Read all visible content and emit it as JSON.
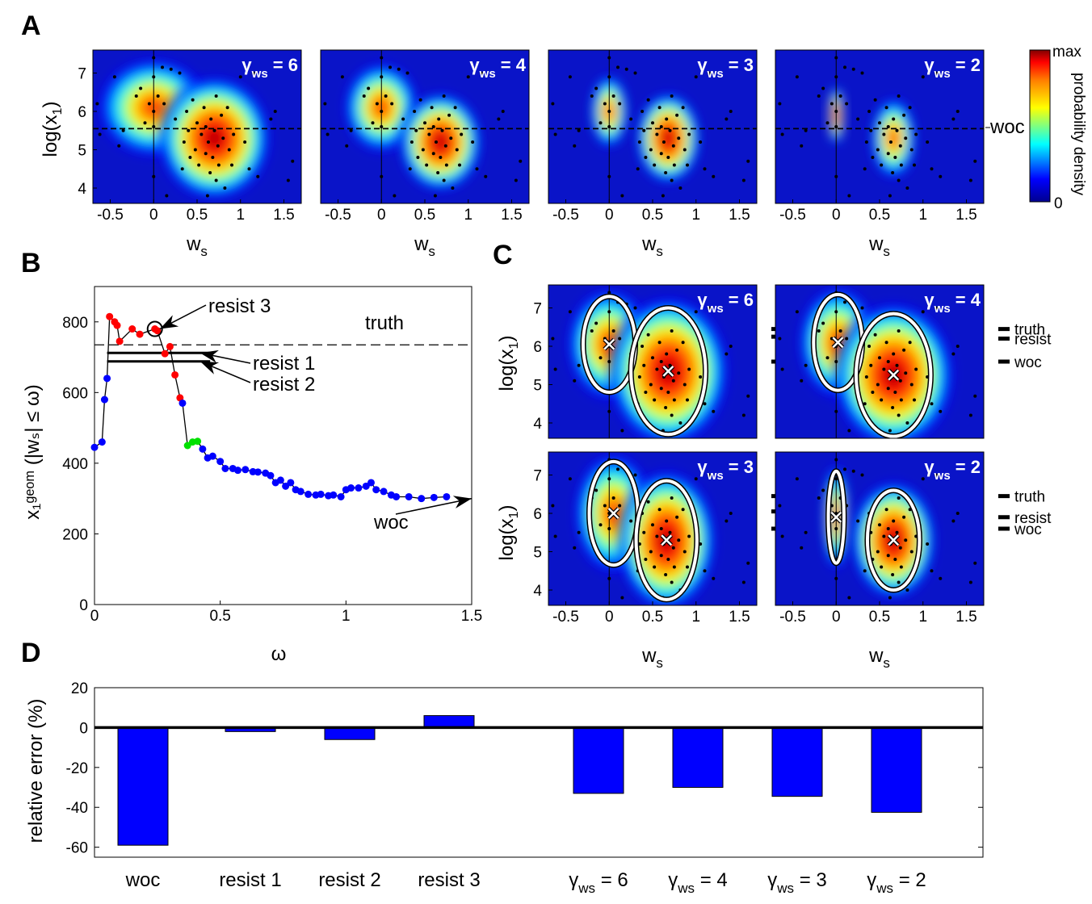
{
  "panel_labels": {
    "A": "A",
    "B": "B",
    "C": "C",
    "D": "D"
  },
  "colorbar": {
    "max_label": "max",
    "min_label": "0",
    "title": "probability density",
    "colors": [
      "#00008f",
      "#0000ff",
      "#00ffff",
      "#ffff00",
      "#ff7f00",
      "#ff0000",
      "#800000"
    ]
  },
  "woc_line_label": "woc",
  "gamma": {
    "symbol": "γ",
    "sub": "ws",
    "values": [
      "6",
      "4",
      "3",
      "2"
    ]
  },
  "axes_A": {
    "xlabel_main": "w",
    "xlabel_sub": "s",
    "ylabel_main": "log(x",
    "ylabel_sub": "1",
    "ylabel_end": ")",
    "xticks": [
      "-0.5",
      "0",
      "0.5",
      "1",
      "1.5"
    ],
    "yticks": [
      "4",
      "5",
      "6",
      "7"
    ]
  },
  "axes_B": {
    "xlabel": "ω",
    "ylabel": "x₁ᵍᵉᵒᵐ (|wₛ| ≤ ω)",
    "xticks": [
      "0",
      "0.5",
      "1",
      "1.5"
    ],
    "yticks": [
      "0",
      "200",
      "400",
      "600",
      "800"
    ]
  },
  "annot_B": {
    "resist3": "resist 3",
    "resist1": "resist 1",
    "resist2": "resist 2",
    "truth": "truth",
    "woc": "woc"
  },
  "markers_C": {
    "truth": "truth",
    "resist": "resist",
    "woc": "woc"
  },
  "axes_D": {
    "ylabel": "relative error (%)",
    "yticks": [
      "20",
      "0",
      "-20",
      "-40",
      "-60"
    ]
  },
  "chart_data": [
    {
      "type": "heatmap",
      "panel": "A",
      "x_range": [
        -0.7,
        1.7
      ],
      "y_range": [
        3.6,
        7.6
      ],
      "woc_y": 5.55,
      "colorbar_range": [
        "0",
        "max"
      ],
      "panels": [
        {
          "gamma": "6",
          "peaks": [
            [
              0.0,
              6.1,
              0.3,
              0.6,
              0.75
            ],
            [
              0.7,
              5.3,
              0.3,
              0.75,
              1.0
            ]
          ]
        },
        {
          "gamma": "4",
          "peaks": [
            [
              0.0,
              6.1,
              0.2,
              0.55,
              0.75
            ],
            [
              0.68,
              5.2,
              0.22,
              0.6,
              1.0
            ]
          ]
        },
        {
          "gamma": "3",
          "peaks": [
            [
              0.0,
              6.0,
              0.1,
              0.45,
              0.6
            ],
            [
              0.68,
              5.3,
              0.17,
              0.55,
              0.9
            ]
          ]
        },
        {
          "gamma": "2",
          "peaks": [
            [
              0.0,
              5.9,
              0.04,
              0.35,
              0.95
            ],
            [
              0.66,
              5.3,
              0.12,
              0.5,
              0.65
            ]
          ]
        }
      ],
      "points": [
        [
          -0.65,
          6.2
        ],
        [
          -0.62,
          5.4
        ],
        [
          -0.45,
          6.9
        ],
        [
          -0.4,
          5.1
        ],
        [
          -0.35,
          5.5
        ],
        [
          -0.2,
          6.4
        ],
        [
          -0.15,
          6.6
        ],
        [
          -0.1,
          5.7
        ],
        [
          -0.05,
          6.2
        ],
        [
          0.0,
          7.4
        ],
        [
          0.0,
          6.9
        ],
        [
          0.0,
          6.0
        ],
        [
          0.0,
          5.6
        ],
        [
          0.0,
          4.3
        ],
        [
          0.05,
          6.4
        ],
        [
          0.1,
          7.15
        ],
        [
          0.12,
          6.2
        ],
        [
          0.15,
          3.8
        ],
        [
          0.2,
          7.1
        ],
        [
          0.25,
          5.8
        ],
        [
          0.3,
          7.0
        ],
        [
          0.33,
          4.5
        ],
        [
          0.35,
          5.2
        ],
        [
          0.38,
          6.0
        ],
        [
          0.4,
          5.5
        ],
        [
          0.42,
          4.8
        ],
        [
          0.45,
          6.3
        ],
        [
          0.48,
          5.0
        ],
        [
          0.5,
          5.7
        ],
        [
          0.52,
          4.6
        ],
        [
          0.55,
          5.4
        ],
        [
          0.58,
          6.1
        ],
        [
          0.6,
          4.9
        ],
        [
          0.6,
          5.6
        ],
        [
          0.62,
          3.8
        ],
        [
          0.63,
          5.2
        ],
        [
          0.65,
          4.4
        ],
        [
          0.66,
          5.8
        ],
        [
          0.68,
          4.8
        ],
        [
          0.7,
          5.5
        ],
        [
          0.72,
          6.4
        ],
        [
          0.72,
          4.2
        ],
        [
          0.74,
          5.1
        ],
        [
          0.75,
          4.6
        ],
        [
          0.78,
          5.9
        ],
        [
          0.8,
          5.3
        ],
        [
          0.82,
          4.0
        ],
        [
          0.85,
          6.1
        ],
        [
          0.87,
          5.0
        ],
        [
          0.9,
          4.6
        ],
        [
          0.92,
          5.4
        ],
        [
          1.0,
          6.9
        ],
        [
          1.05,
          5.2
        ],
        [
          1.1,
          4.5
        ],
        [
          1.15,
          7.0
        ],
        [
          1.2,
          4.3
        ],
        [
          1.35,
          5.8
        ],
        [
          1.4,
          6.0
        ],
        [
          1.55,
          4.2
        ],
        [
          1.6,
          4.7
        ]
      ]
    },
    {
      "type": "line",
      "panel": "B",
      "xlabel": "ω",
      "ylabel": "x₁ᵍᵉᵒᵐ (|wₛ| ≤ ω)",
      "xlim": [
        0,
        1.5
      ],
      "ylim": [
        0,
        900
      ],
      "truth": 735,
      "resist1": 712,
      "resist2": 688,
      "x": [
        0.0,
        0.03,
        0.04,
        0.05,
        0.06,
        0.08,
        0.09,
        0.1,
        0.15,
        0.18,
        0.24,
        0.25,
        0.28,
        0.3,
        0.32,
        0.34,
        0.35,
        0.37,
        0.39,
        0.41,
        0.43,
        0.45,
        0.47,
        0.5,
        0.52,
        0.55,
        0.57,
        0.6,
        0.63,
        0.65,
        0.68,
        0.7,
        0.72,
        0.74,
        0.76,
        0.78,
        0.8,
        0.82,
        0.85,
        0.88,
        0.9,
        0.93,
        0.95,
        0.98,
        1.0,
        1.02,
        1.05,
        1.08,
        1.1,
        1.12,
        1.15,
        1.18,
        1.2,
        1.25,
        1.3,
        1.35,
        1.4
      ],
      "y": [
        445,
        460,
        580,
        640,
        815,
        800,
        790,
        745,
        780,
        765,
        780,
        775,
        710,
        730,
        650,
        585,
        570,
        450,
        460,
        462,
        440,
        415,
        420,
        405,
        385,
        385,
        380,
        382,
        376,
        375,
        372,
        365,
        345,
        352,
        335,
        345,
        325,
        320,
        312,
        310,
        312,
        308,
        310,
        305,
        325,
        330,
        330,
        335,
        345,
        325,
        320,
        310,
        305,
        305,
        300,
        303,
        305
      ],
      "segment_colors": {
        "blue": [
          0,
          3
        ],
        "red": [
          4,
          15
        ],
        "green": [
          17,
          19
        ]
      }
    },
    {
      "type": "heatmap",
      "panel": "C",
      "x_range": [
        -0.7,
        1.7
      ],
      "y_range": [
        3.6,
        7.6
      ],
      "panels": [
        {
          "gamma": "6",
          "ellipses": [
            [
              0.0,
              6.05,
              0.3,
              1.25
            ],
            [
              0.68,
              5.35,
              0.43,
              1.65
            ]
          ],
          "markers": {
            "truth": 6.45,
            "resist": 6.25,
            "woc": 5.6
          }
        },
        {
          "gamma": "4",
          "ellipses": [
            [
              0.02,
              6.1,
              0.28,
              1.25
            ],
            [
              0.66,
              5.25,
              0.43,
              1.6
            ]
          ],
          "markers": {
            "truth": 6.45,
            "resist": 6.2,
            "woc": 5.6
          }
        },
        {
          "gamma": "3",
          "ellipses": [
            [
              0.05,
              6.0,
              0.28,
              1.35
            ],
            [
              0.66,
              5.3,
              0.35,
              1.55
            ]
          ],
          "markers": {
            "truth": 6.45,
            "resist": 6.05,
            "woc": 5.6
          }
        },
        {
          "gamma": "2",
          "ellipses": [
            [
              0.0,
              5.9,
              0.09,
              1.2
            ],
            [
              0.66,
              5.3,
              0.3,
              1.3
            ]
          ],
          "markers": {
            "truth": 6.45,
            "resist": 5.9,
            "woc": 5.6
          }
        }
      ]
    },
    {
      "type": "bar",
      "panel": "D",
      "ylabel": "relative error (%)",
      "ylim": [
        -65,
        20
      ],
      "categories": [
        "woc",
        "resist 1",
        "resist 2",
        "resist 3",
        "γws = 6",
        "γws = 4",
        "γws = 3",
        "γws = 2"
      ],
      "values": [
        -59,
        -2,
        -6,
        6,
        -33,
        -30,
        -34.5,
        -42.5
      ],
      "color": "#0000ff"
    }
  ]
}
